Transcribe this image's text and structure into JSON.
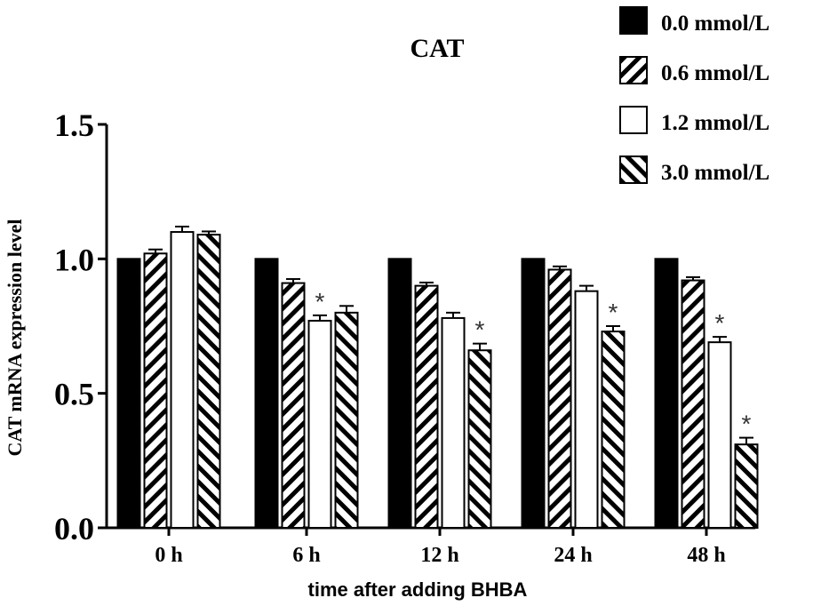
{
  "chart_data": {
    "type": "bar",
    "title": "CAT",
    "xlabel": "time after adding BHBA",
    "ylabel": "CAT mRNA expression level",
    "ylim": [
      0,
      1.5
    ],
    "yticks": [
      "0.0",
      "0.5",
      "1.0",
      "1.5"
    ],
    "categories": [
      "0 h",
      "6 h",
      "12 h",
      "24 h",
      "48 h"
    ],
    "legend_position": "top-right",
    "series": [
      {
        "name": "0.0 mmol/L",
        "fill": "solid",
        "values": [
          1.0,
          1.0,
          1.0,
          1.0,
          1.0
        ],
        "errors": [
          0,
          0,
          0,
          0,
          0
        ],
        "significant": [
          false,
          false,
          false,
          false,
          false
        ]
      },
      {
        "name": "0.6 mmol/L",
        "fill": "hatch-forward",
        "values": [
          1.02,
          0.91,
          0.9,
          0.96,
          0.92
        ],
        "errors": [
          0.015,
          0.015,
          0.012,
          0.012,
          0.012
        ],
        "significant": [
          false,
          false,
          false,
          false,
          false
        ]
      },
      {
        "name": "1.2 mmol/L",
        "fill": "white",
        "values": [
          1.1,
          0.77,
          0.78,
          0.88,
          0.69
        ],
        "errors": [
          0.02,
          0.02,
          0.02,
          0.02,
          0.02
        ],
        "significant": [
          false,
          true,
          false,
          false,
          true
        ]
      },
      {
        "name": "3.0 mmol/L",
        "fill": "hatch-back",
        "values": [
          1.09,
          0.8,
          0.66,
          0.73,
          0.31
        ],
        "errors": [
          0.012,
          0.025,
          0.025,
          0.02,
          0.025
        ],
        "significant": [
          false,
          false,
          true,
          true,
          true
        ]
      }
    ],
    "significance_marker": "*"
  }
}
